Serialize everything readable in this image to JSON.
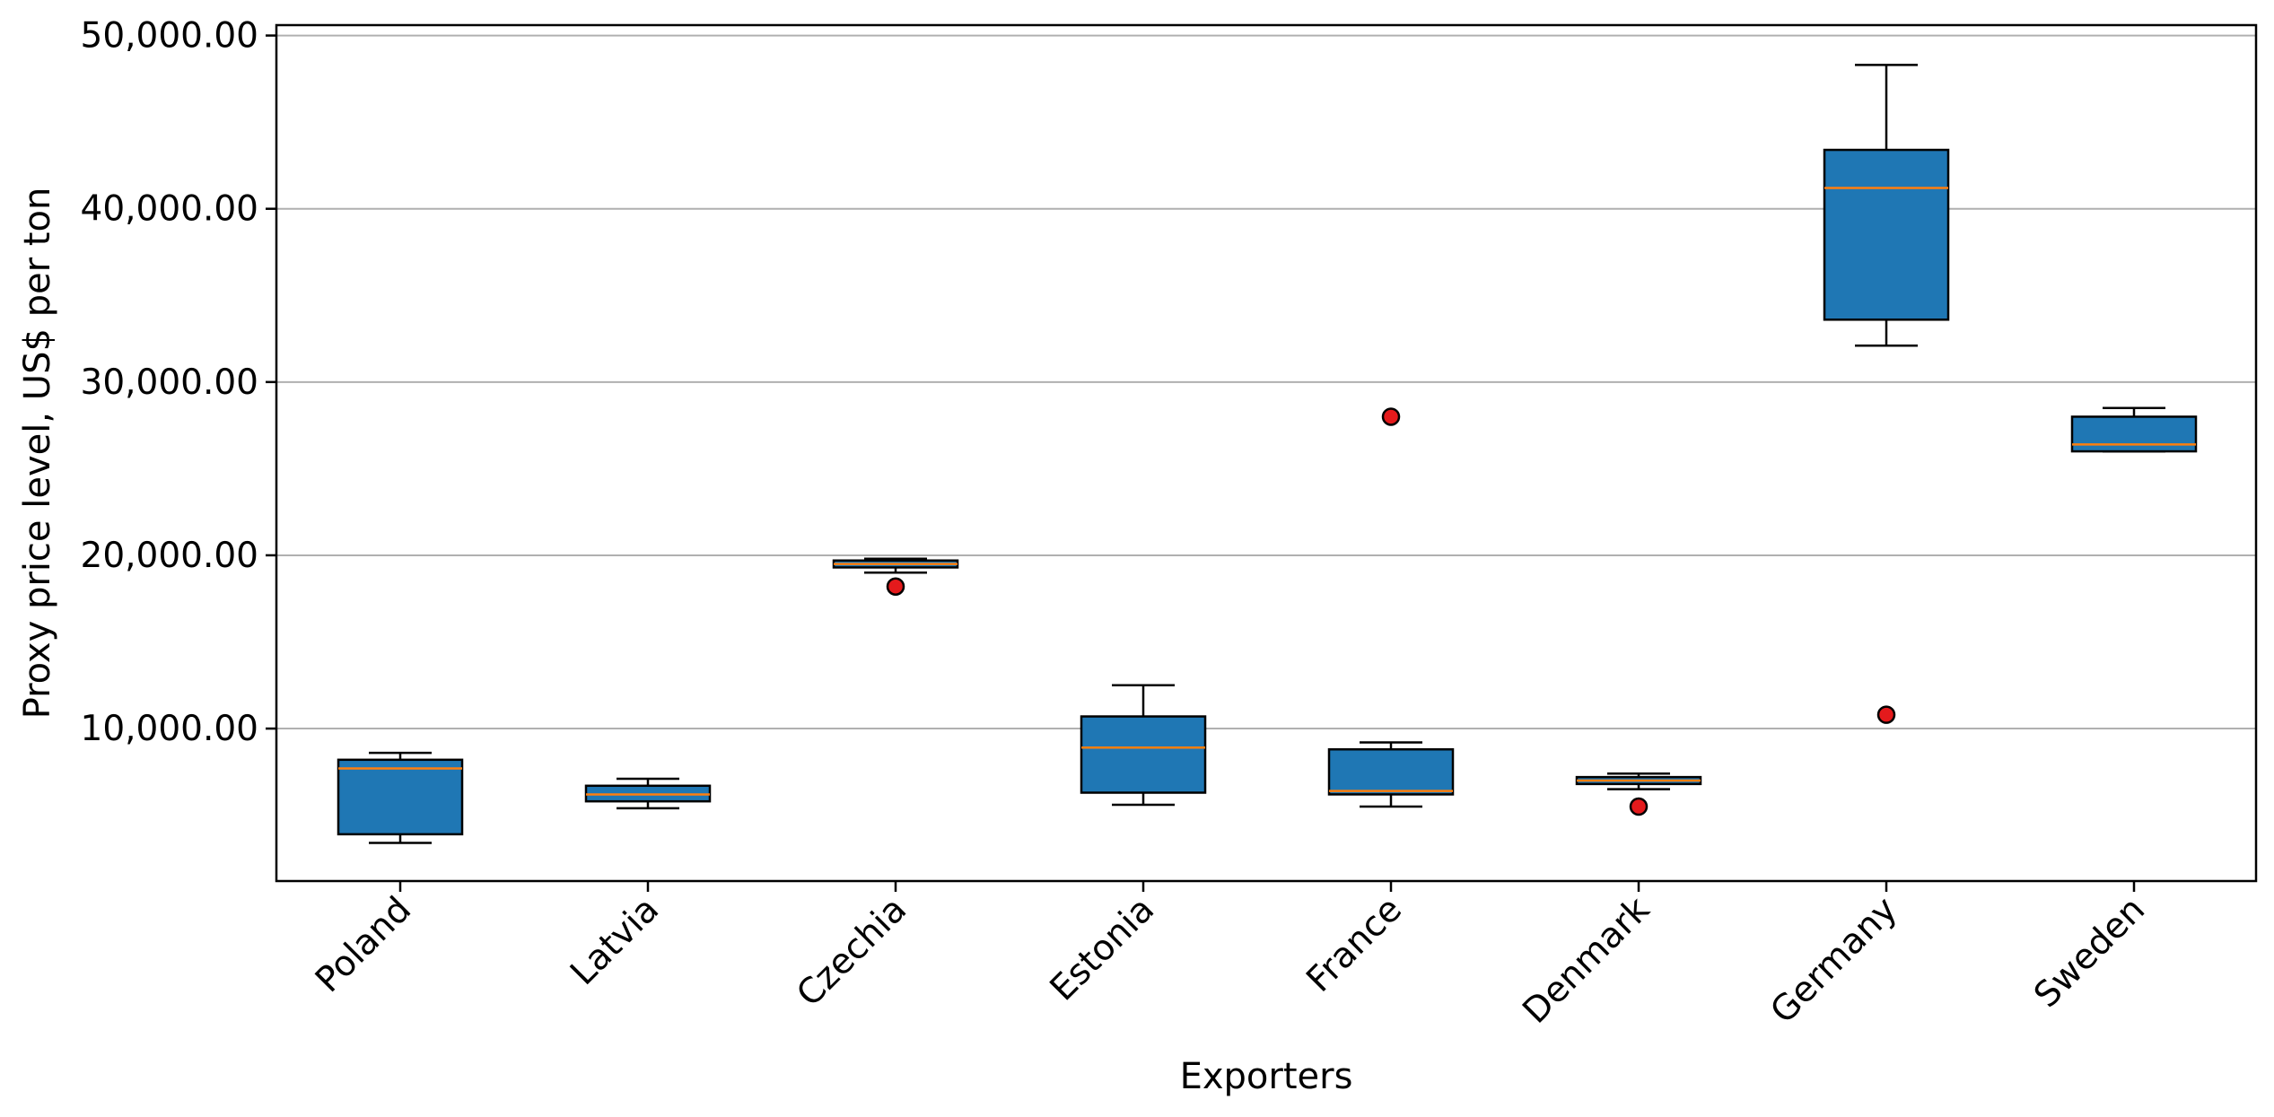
{
  "chart_data": {
    "type": "boxplot",
    "title": "",
    "xlabel": "Exporters",
    "ylabel": "Proxy price level, US$ per ton",
    "ylim": [
      1200,
      50600
    ],
    "y_ticks": [
      10000,
      20000,
      30000,
      40000,
      50000
    ],
    "y_tick_labels": [
      "10,000.00",
      "20,000.00",
      "30,000.00",
      "40,000.00",
      "50,000.00"
    ],
    "grid": "horizontal",
    "categories": [
      "Poland",
      "Latvia",
      "Czechia",
      "Estonia",
      "France",
      "Denmark",
      "Germany",
      "Sweden"
    ],
    "boxes": [
      {
        "category": "Poland",
        "whisker_low": 3400,
        "q1": 3900,
        "median": 7700,
        "q3": 8200,
        "whisker_high": 8600,
        "outliers": []
      },
      {
        "category": "Latvia",
        "whisker_low": 5400,
        "q1": 5800,
        "median": 6200,
        "q3": 6700,
        "whisker_high": 7100,
        "outliers": []
      },
      {
        "category": "Czechia",
        "whisker_low": 19000,
        "q1": 19300,
        "median": 19500,
        "q3": 19700,
        "whisker_high": 19800,
        "outliers": [
          18200
        ]
      },
      {
        "category": "Estonia",
        "whisker_low": 5600,
        "q1": 6300,
        "median": 8900,
        "q3": 10700,
        "whisker_high": 12500,
        "outliers": []
      },
      {
        "category": "France",
        "whisker_low": 5500,
        "q1": 6200,
        "median": 6400,
        "q3": 8800,
        "whisker_high": 9200,
        "outliers": [
          28000
        ]
      },
      {
        "category": "Denmark",
        "whisker_low": 6500,
        "q1": 6800,
        "median": 7000,
        "q3": 7200,
        "whisker_high": 7400,
        "outliers": [
          5500
        ]
      },
      {
        "category": "Germany",
        "whisker_low": 32100,
        "q1": 33600,
        "median": 41200,
        "q3": 43400,
        "whisker_high": 48300,
        "outliers": [
          10800
        ]
      },
      {
        "category": "Sweden",
        "whisker_low": 26000,
        "q1": 26000,
        "median": 26400,
        "q3": 28000,
        "whisker_high": 28500,
        "outliers": []
      }
    ],
    "colors": {
      "box_fill": "#1f77b4",
      "box_edge": "#000000",
      "median": "#ff7f0e",
      "outlier_fill": "#e41a1c",
      "outlier_edge": "#000000",
      "grid": "#b0b0b0"
    }
  }
}
